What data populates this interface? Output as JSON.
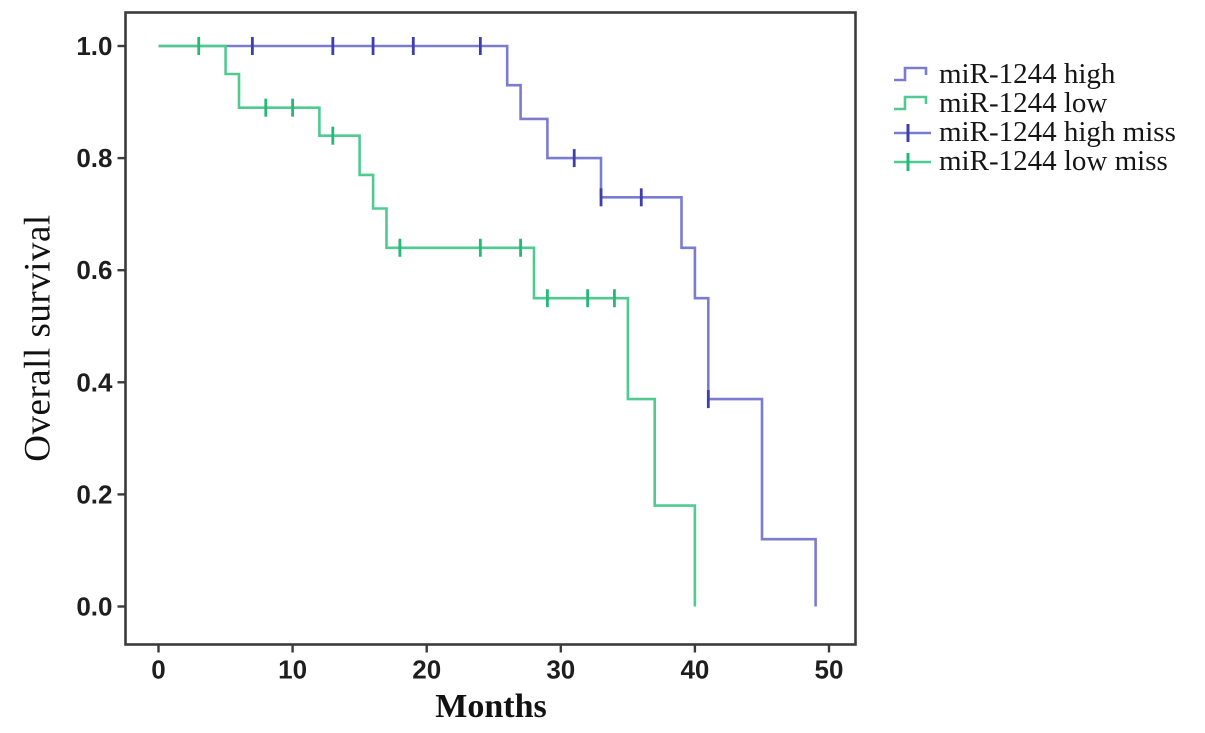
{
  "figure": {
    "y_axis_label": "Overall survival",
    "x_axis_label": "Months"
  },
  "colors": {
    "high_line": "#7b7bd2",
    "high_censor": "#3e3eae",
    "low_line": "#4fcb92",
    "low_censor": "#26b877",
    "axis": "#3b3b3b",
    "tick_text": "#1e1e1e",
    "background": "#ffffff"
  },
  "chart_data": {
    "type": "line",
    "subtype": "kaplan-meier-step",
    "title": "",
    "xlabel": "Months",
    "ylabel": "Overall survival",
    "xlim": [
      0,
      50
    ],
    "ylim": [
      0.0,
      1.0
    ],
    "grid": false,
    "legend_position": "right-top-outside",
    "x_ticks": [
      0,
      10,
      20,
      30,
      40,
      50
    ],
    "x_tick_labels": [
      "0",
      "10",
      "20",
      "30",
      "40",
      "50"
    ],
    "y_ticks": [
      0.0,
      0.2,
      0.4,
      0.6,
      0.8,
      1.0
    ],
    "y_tick_labels": [
      "0.0",
      "0.2",
      "0.4",
      "0.6",
      "0.8",
      "1.0"
    ],
    "series": [
      {
        "name": "miR-1244 high",
        "color": "#7b7bd2",
        "censor_color": "#3e3eae",
        "steps": [
          [
            0,
            1.0
          ],
          [
            26,
            0.93
          ],
          [
            27,
            0.87
          ],
          [
            29,
            0.8
          ],
          [
            33,
            0.73
          ],
          [
            39,
            0.64
          ],
          [
            40,
            0.55
          ],
          [
            41,
            0.37
          ],
          [
            45,
            0.12
          ],
          [
            49,
            0.0
          ]
        ],
        "censors": [
          [
            7,
            1.0
          ],
          [
            13,
            1.0
          ],
          [
            16,
            1.0
          ],
          [
            19,
            1.0
          ],
          [
            24,
            1.0
          ],
          [
            31,
            0.8
          ],
          [
            33,
            0.73
          ],
          [
            36,
            0.73
          ],
          [
            41,
            0.37
          ]
        ]
      },
      {
        "name": "miR-1244 low",
        "color": "#4fcb92",
        "censor_color": "#26b877",
        "steps": [
          [
            0,
            1.0
          ],
          [
            5,
            0.95
          ],
          [
            6,
            0.89
          ],
          [
            12,
            0.84
          ],
          [
            15,
            0.77
          ],
          [
            16,
            0.71
          ],
          [
            17,
            0.64
          ],
          [
            28,
            0.55
          ],
          [
            35,
            0.37
          ],
          [
            37,
            0.18
          ],
          [
            40,
            0.0
          ]
        ],
        "censors": [
          [
            3,
            1.0
          ],
          [
            8,
            0.89
          ],
          [
            10,
            0.89
          ],
          [
            13,
            0.84
          ],
          [
            18,
            0.64
          ],
          [
            24,
            0.64
          ],
          [
            27,
            0.64
          ],
          [
            29,
            0.55
          ],
          [
            32,
            0.55
          ],
          [
            34,
            0.55
          ]
        ]
      }
    ],
    "legend": {
      "items": [
        {
          "label": "miR-1244 high",
          "symbol": "step",
          "color": "#7b7bd2",
          "plus_color": "#7b7bd2"
        },
        {
          "label": "miR-1244 low",
          "symbol": "step",
          "color": "#4fcb92",
          "plus_color": "#4fcb92"
        },
        {
          "label": "miR-1244 high miss",
          "symbol": "plus",
          "color": "#7b7bd2",
          "plus_color": "#3e3eae"
        },
        {
          "label": "miR-1244 low miss",
          "symbol": "plus",
          "color": "#4fcb92",
          "plus_color": "#26b877"
        }
      ]
    }
  }
}
